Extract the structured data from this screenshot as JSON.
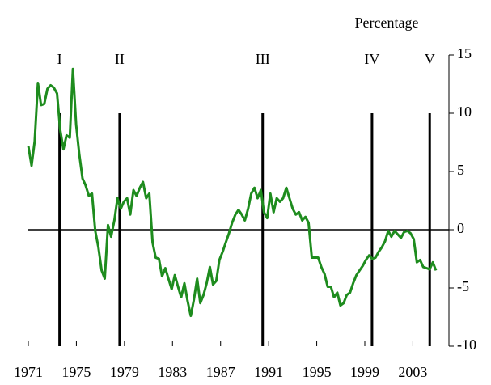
{
  "chart_data": {
    "type": "line",
    "y_axis_label": "Percentage",
    "xlim": [
      1971,
      2006
    ],
    "xticks": [
      1971,
      1975,
      1979,
      1983,
      1987,
      1991,
      1995,
      1999,
      2003
    ],
    "ylim": [
      -10,
      15
    ],
    "yticks": [
      -10,
      -5,
      0,
      5,
      10,
      15
    ],
    "zero_line": true,
    "vlines_range": [
      -10,
      10
    ],
    "vlines": [
      {
        "label": "I",
        "x": 1973.6
      },
      {
        "label": "II",
        "x": 1978.6
      },
      {
        "label": "III",
        "x": 1990.5
      },
      {
        "label": "IV",
        "x": 1999.6
      },
      {
        "label": "V",
        "x": 2004.4
      }
    ],
    "series": [
      {
        "color": "#1e8c1e",
        "x": [
          1971.0,
          1971.27,
          1971.53,
          1971.8,
          1972.06,
          1972.33,
          1972.59,
          1972.86,
          1973.12,
          1973.39,
          1973.65,
          1973.92,
          1974.18,
          1974.45,
          1974.71,
          1974.98,
          1975.24,
          1975.51,
          1975.77,
          1976.04,
          1976.3,
          1976.57,
          1976.83,
          1977.1,
          1977.36,
          1977.63,
          1977.89,
          1978.16,
          1978.42,
          1978.69,
          1978.95,
          1979.22,
          1979.48,
          1979.75,
          1980.01,
          1980.28,
          1980.54,
          1980.81,
          1981.07,
          1981.34,
          1981.6,
          1981.87,
          1982.13,
          1982.4,
          1982.66,
          1982.93,
          1983.19,
          1983.46,
          1983.72,
          1983.99,
          1984.25,
          1984.52,
          1984.78,
          1985.05,
          1985.31,
          1985.58,
          1985.84,
          1986.11,
          1986.37,
          1986.64,
          1986.9,
          1987.17,
          1987.43,
          1987.7,
          1987.96,
          1988.23,
          1988.49,
          1988.76,
          1989.02,
          1989.29,
          1989.55,
          1989.82,
          1990.08,
          1990.35,
          1990.61,
          1990.88,
          1991.14,
          1991.41,
          1991.67,
          1991.94,
          1992.2,
          1992.47,
          1992.73,
          1993.0,
          1993.26,
          1993.53,
          1993.79,
          1994.06,
          1994.32,
          1994.59,
          1994.85,
          1995.12,
          1995.38,
          1995.65,
          1995.91,
          1996.18,
          1996.44,
          1996.71,
          1996.97,
          1997.24,
          1997.5,
          1997.77,
          1998.03,
          1998.3,
          1998.56,
          1998.83,
          1999.09,
          1999.36,
          1999.62,
          1999.89,
          2000.15,
          2000.42,
          2000.68,
          2000.95,
          2001.21,
          2001.48,
          2001.74,
          2002.01,
          2002.27,
          2002.54,
          2002.8,
          2003.07,
          2003.33,
          2003.6,
          2003.86,
          2004.13,
          2004.39,
          2004.66,
          2004.92
        ],
        "values": [
          7.2,
          5.5,
          7.6,
          12.6,
          10.7,
          10.8,
          12.1,
          12.4,
          12.2,
          11.7,
          8.6,
          6.9,
          8.1,
          7.9,
          13.8,
          9.0,
          6.5,
          4.4,
          3.8,
          2.9,
          3.1,
          -0.1,
          -1.5,
          -3.5,
          -4.2,
          0.4,
          -0.6,
          0.8,
          2.7,
          1.8,
          2.4,
          2.7,
          1.3,
          3.4,
          2.9,
          3.6,
          4.1,
          2.7,
          3.1,
          -1.1,
          -2.4,
          -2.5,
          -4.0,
          -3.3,
          -4.2,
          -5.1,
          -3.9,
          -4.9,
          -5.8,
          -4.6,
          -6.1,
          -7.4,
          -6.0,
          -4.2,
          -6.3,
          -5.6,
          -4.6,
          -3.2,
          -4.7,
          -4.4,
          -2.6,
          -1.9,
          -1.1,
          -0.3,
          0.6,
          1.3,
          1.7,
          1.3,
          0.8,
          1.8,
          3.1,
          3.6,
          2.7,
          3.4,
          1.5,
          1.0,
          3.1,
          1.5,
          2.7,
          2.4,
          2.7,
          3.6,
          2.7,
          1.8,
          1.3,
          1.5,
          0.8,
          1.1,
          0.6,
          -2.4,
          -2.4,
          -2.4,
          -3.2,
          -3.8,
          -4.9,
          -4.9,
          -5.8,
          -5.4,
          -6.5,
          -6.3,
          -5.6,
          -5.4,
          -4.6,
          -3.9,
          -3.5,
          -3.1,
          -2.6,
          -2.2,
          -2.5,
          -2.4,
          -1.9,
          -1.5,
          -1.0,
          -0.1,
          -0.6,
          -0.1,
          -0.4,
          -0.7,
          -0.2,
          -0.1,
          -0.3,
          -0.8,
          -2.8,
          -2.6,
          -3.2,
          -3.3,
          -3.4,
          -2.8,
          -3.5
        ]
      }
    ]
  }
}
